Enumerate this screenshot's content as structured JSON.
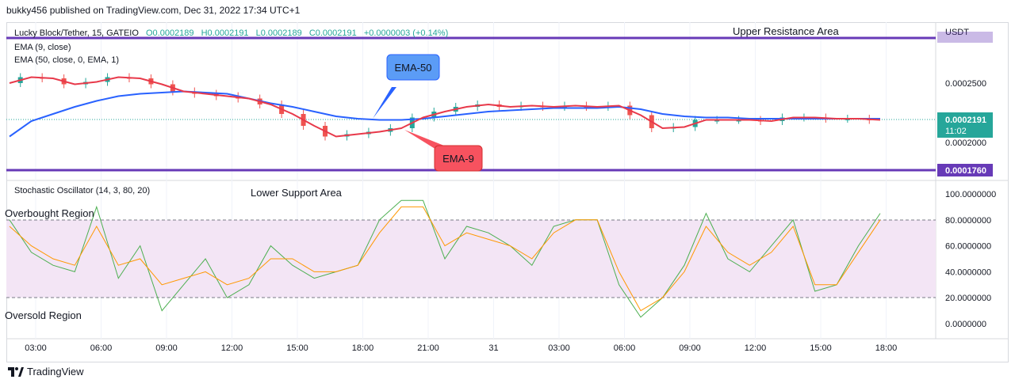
{
  "header": {
    "publisher_text": "bukky456 published on TradingView.com, Dec 31, 2022 17:34 UTC+1"
  },
  "price_pane": {
    "symbol": "Lucky Block/Tether, 15, GATEIO",
    "ohlc": {
      "open": "O0.0002189",
      "high": "H0.0002191",
      "low": "L0.0002189",
      "close": "C0.0002191",
      "change": "+0.0000003 (+0.14%)"
    },
    "indicators": [
      "EMA (9, close)",
      "EMA (50, close, 0, EMA, 1)"
    ],
    "currency": "USDT",
    "annotations": {
      "upper": "Upper Resistance Area",
      "lower": "Lower Support Area",
      "ema50": "EMA-50",
      "ema9": "EMA-9"
    },
    "price_ticks": [
      "0.0002500",
      "0.0002000"
    ],
    "last_price": "0.0002191",
    "countdown": "11:02",
    "support_price": "0.0001760",
    "colors": {
      "up": "#26a69a",
      "down": "#ef5350",
      "ema9": "#e8394a",
      "ema50": "#2962ff",
      "level": "#673ab7"
    }
  },
  "oscillator_pane": {
    "title": "Stochastic Oscillator (14, 3, 80, 20)",
    "overbought_label": "Overbought Region",
    "oversold_label": "Oversold Region",
    "ticks": [
      "100.0000000",
      "80.0000000",
      "60.0000000",
      "40.0000000",
      "20.0000000",
      "0.0000000"
    ],
    "colors": {
      "k": "#4caf50",
      "d": "#ff9800",
      "band": "#f3e5f5"
    }
  },
  "time_axis": [
    "03:00",
    "06:00",
    "09:00",
    "12:00",
    "15:00",
    "18:00",
    "21:00",
    "31",
    "03:00",
    "06:00",
    "09:00",
    "12:00",
    "15:00",
    "18:00"
  ],
  "chart_data": {
    "type": "line",
    "title": "Lucky Block/Tether, 15, GATEIO",
    "x": [
      "02:00",
      "03:00",
      "04:00",
      "05:00",
      "06:00",
      "07:00",
      "08:00",
      "09:00",
      "10:00",
      "11:00",
      "12:00",
      "13:00",
      "14:00",
      "15:00",
      "16:00",
      "17:00",
      "18:00",
      "19:00",
      "20:00",
      "21:00",
      "22:00",
      "23:00",
      "31",
      "01:00",
      "02:00",
      "03:00",
      "04:00",
      "05:00",
      "06:00",
      "07:00",
      "08:00",
      "09:00",
      "10:00",
      "11:00",
      "12:00",
      "13:00",
      "14:00",
      "15:00",
      "16:00",
      "17:00",
      "18:00"
    ],
    "series": [
      {
        "name": "EMA (9, close)",
        "values": [
          0.00025,
          0.000255,
          0.000254,
          0.000249,
          0.000251,
          0.000255,
          0.000254,
          0.000249,
          0.000243,
          0.000241,
          0.000239,
          0.000237,
          0.000232,
          0.000224,
          0.000214,
          0.000205,
          0.000207,
          0.000209,
          0.000212,
          0.000221,
          0.000226,
          0.00023,
          0.000232,
          0.00023,
          0.000231,
          0.00023,
          0.000231,
          0.00023,
          0.000231,
          0.000223,
          0.000212,
          0.000213,
          0.000219,
          0.000219,
          0.000219,
          0.000218,
          0.000221,
          0.000221,
          0.00022,
          0.00022,
          0.000219
        ]
      },
      {
        "name": "EMA (50, close, 0, EMA, 1)",
        "values": [
          0.000205,
          0.000218,
          0.000224,
          0.00023,
          0.000235,
          0.000239,
          0.000241,
          0.000242,
          0.000243,
          0.000242,
          0.000241,
          0.000237,
          0.000233,
          0.00023,
          0.000226,
          0.000222,
          0.00022,
          0.000219,
          0.000219,
          0.00022,
          0.000222,
          0.000224,
          0.000226,
          0.000227,
          0.000228,
          0.000229,
          0.000229,
          0.000229,
          0.00023,
          0.000228,
          0.000224,
          0.000222,
          0.000221,
          0.000221,
          0.00022,
          0.00022,
          0.00022,
          0.00022,
          0.00022,
          0.00022,
          0.00022
        ]
      },
      {
        "name": "%K",
        "values": [
          80,
          55,
          45,
          40,
          90,
          35,
          60,
          10,
          30,
          50,
          20,
          30,
          60,
          45,
          35,
          40,
          45,
          80,
          95,
          95,
          50,
          75,
          70,
          60,
          45,
          75,
          80,
          80,
          30,
          5,
          20,
          45,
          85,
          50,
          40,
          60,
          80,
          25,
          30,
          60,
          85
        ]
      },
      {
        "name": "%D",
        "values": [
          75,
          60,
          50,
          45,
          75,
          45,
          50,
          30,
          35,
          40,
          30,
          35,
          50,
          50,
          40,
          40,
          45,
          70,
          90,
          90,
          60,
          70,
          65,
          60,
          50,
          70,
          80,
          80,
          40,
          10,
          20,
          40,
          75,
          55,
          45,
          55,
          75,
          30,
          30,
          55,
          80
        ]
      }
    ],
    "levels": {
      "upper_resistance": 0.000256,
      "lower_support": 0.000176
    },
    "oscillator_bands": {
      "overbought": 80,
      "oversold": 20
    },
    "ylim": [
      0.00017,
      0.00026
    ]
  }
}
